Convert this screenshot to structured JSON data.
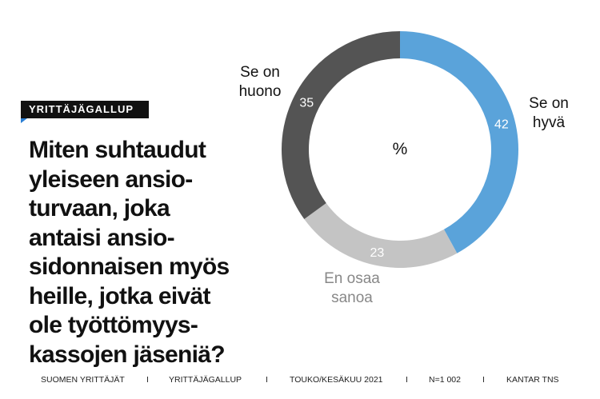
{
  "badge": {
    "label": "YRITTÄJÄGALLUP"
  },
  "question": "Miten suhtaudut\nyleiseen ansio-\nturvaan, joka\nantaisi ansio-\nsidonnaisen myös\nheille, jotka eivät\nole työttömyys-\nkassojen jäseniä?",
  "chart_data": {
    "type": "pie",
    "donut": true,
    "center_label": "%",
    "slices": [
      {
        "label": "Se on\nhyvä",
        "value": 42,
        "color": "#5aa3da"
      },
      {
        "label": "En osaa\nsanoa",
        "value": 23,
        "color": "#c4c4c4"
      },
      {
        "label": "Se on\nhuono",
        "value": 35,
        "color": "#545454"
      }
    ]
  },
  "footer": {
    "items": [
      "SUOMEN YRITTÄJÄT",
      "I",
      "YRITTÄJÄGALLUP",
      "I",
      "TOUKO/KESÄKUU 2021",
      "I",
      "N=1 002",
      "I",
      "KANTAR TNS"
    ]
  }
}
